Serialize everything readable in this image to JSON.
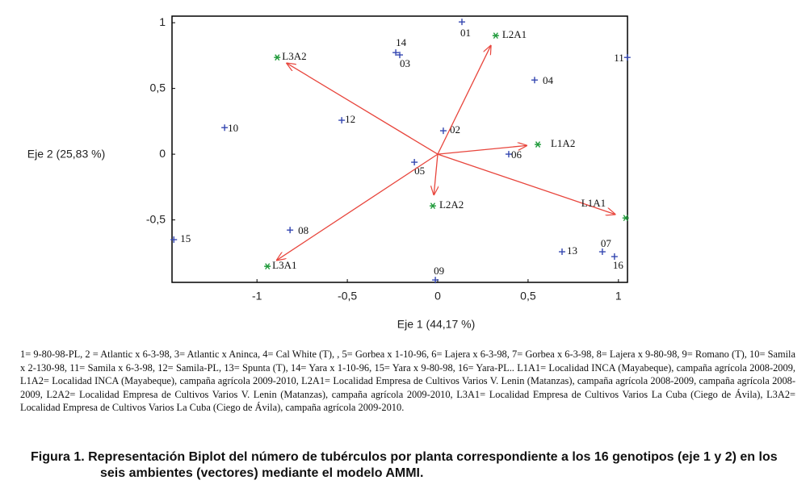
{
  "chart_data": {
    "type": "biplot",
    "xlabel": "Eje 1 (44,17 %)",
    "ylabel": "Eje 2 (25,83 %)",
    "xlim": [
      -1.47,
      1.05
    ],
    "ylim": [
      -0.975,
      1.05
    ],
    "xticks": [
      {
        "value": -1,
        "label": "-1"
      },
      {
        "value": -0.5,
        "label": "-0,5"
      },
      0,
      {
        "value": 0.5,
        "label": "0,5"
      },
      1
    ],
    "yticks": [
      1,
      {
        "value": 0.5,
        "label": "0,5"
      },
      0,
      {
        "value": -0.5,
        "label": "-0,5"
      }
    ],
    "vector_color": "#e8453c",
    "series": [
      {
        "color": "#3346b0",
        "marker": "+",
        "labels": [
          "01",
          "02",
          "03",
          "04",
          "05",
          "06",
          "07",
          "08",
          "09",
          "10",
          "11",
          "12",
          "13",
          "14",
          "15",
          "16"
        ],
        "x": [
          0.134,
          0.031,
          -0.21,
          0.536,
          -0.129,
          0.393,
          0.911,
          -0.817,
          -0.013,
          -1.179,
          1.049,
          -0.531,
          0.688,
          -0.232,
          -1.46,
          0.978
        ],
        "y": [
          1.006,
          0.178,
          0.755,
          0.564,
          -0.061,
          0.0,
          -0.742,
          -0.577,
          -0.957,
          0.202,
          0.736,
          0.258,
          -0.742,
          0.773,
          -0.65,
          -0.779
        ]
      },
      {
        "color": "#1f9a3a",
        "marker": "*",
        "vectors": true,
        "labels": [
          "L2A1",
          "L3A2",
          "L1A2",
          "L2A2",
          "L1A1",
          "L3A1"
        ],
        "x": [
          0.321,
          -0.888,
          0.554,
          -0.027,
          1.04,
          -0.942
        ],
        "y": [
          0.902,
          0.736,
          0.074,
          -0.393,
          -0.485,
          -0.853
        ]
      }
    ]
  },
  "footnote": "1= 9-80-98-PL, 2 = Atlantic x 6-3-98, 3= Atlantic x Aninca, 4= Cal White (T), , 5= Gorbea x 1-10-96, 6= Lajera x 6-3-98, 7= Gorbea x 6-3-98, 8= Lajera x 9-80-98, 9= Romano (T), 10= Samila x 2-130-98, 11= Samila x 6-3-98, 12= Samila-PL, 13= Spunta (T), 14= Yara x 1-10-96, 15= Yara x 9-80-98, 16= Yara-PL.. L1A1= Localidad INCA (Mayabeque), campaña agrícola 2008-2009, L1A2= Localidad INCA (Mayabeque), campaña agrícola 2009-2010, L2A1= Localidad Empresa de Cultivos Varios V. Lenin (Matanzas), campaña agrícola 2008-2009, campaña agrícola 2008-2009, L2A2= Localidad Empresa de Cultivos Varios V. Lenin (Matanzas), campaña agrícola 2009-2010, L3A1= Localidad Empresa de Cultivos Varios La Cuba (Ciego de Ávila), L3A2= Localidad Empresa de Cultivos Varios La Cuba (Ciego de Ávila), campaña agrícola 2009-2010.",
  "caption": "Figura 1. Representación Biplot del número de tubérculos por planta correspondiente a los 16 genotipos (eje 1 y 2) en los seis ambientes (vectores) mediante el modelo AMMI."
}
